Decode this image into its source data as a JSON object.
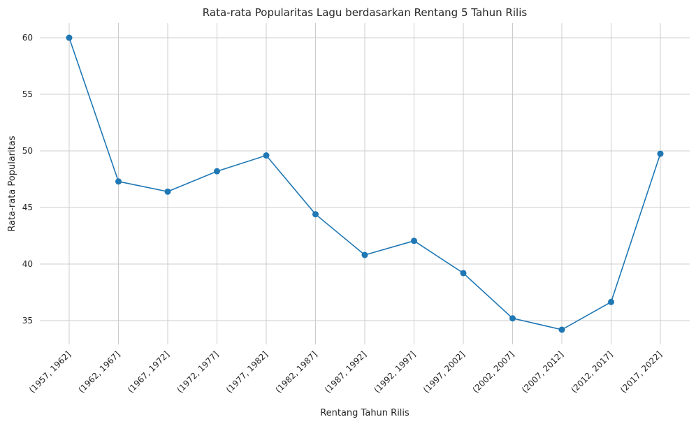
{
  "chart_data": {
    "type": "line",
    "title": "Rata-rata Popularitas Lagu berdasarkan Rentang 5 Tahun Rilis",
    "xlabel": "Rentang Tahun Rilis",
    "ylabel": "Rata-rata Popularitas",
    "categories": [
      "(1957, 1962]",
      "(1962, 1967]",
      "(1967, 1972]",
      "(1972, 1977]",
      "(1977, 1982]",
      "(1982, 1987]",
      "(1987, 1992]",
      "(1992, 1997]",
      "(1997, 2002]",
      "(2002, 2007]",
      "(2007, 2012]",
      "(2012, 2017]",
      "(2017, 2022]"
    ],
    "series": [
      {
        "values": [
          60.0,
          47.3,
          46.4,
          48.2,
          49.6,
          44.4,
          40.8,
          42.05,
          39.2,
          35.2,
          34.2,
          36.65,
          49.75
        ],
        "color": "#1f77b4"
      }
    ],
    "yticks": [
      35,
      40,
      45,
      50,
      55,
      60
    ],
    "ylim": [
      32.9,
      61.3
    ],
    "grid": true,
    "marker": "circle"
  }
}
